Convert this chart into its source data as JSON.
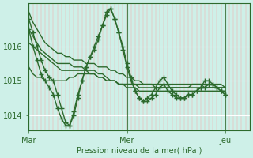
{
  "background_color": "#cef0e8",
  "plot_bg_color": "#cef0e8",
  "line_color": "#2d6a2d",
  "grid_color_major": "#ffffff",
  "grid_color_minor": "#f5aaaa",
  "xlabel": "Pression niveau de la mer( hPa )",
  "yticks": [
    1014,
    1015,
    1016
  ],
  "xtick_labels": [
    "Mar",
    "Mer",
    "Jeu"
  ],
  "xtick_positions": [
    0,
    24,
    48
  ],
  "xmin": 0,
  "xmax": 54,
  "ymin": 1013.55,
  "ymax": 1017.25,
  "vline_positions": [
    0,
    24,
    48
  ],
  "series": [
    {
      "y": [
        1017.0,
        1016.7,
        1016.5,
        1016.3,
        1016.1,
        1016.0,
        1015.9,
        1015.8,
        1015.8,
        1015.7,
        1015.7,
        1015.6,
        1015.6,
        1015.6,
        1015.5,
        1015.5,
        1015.5,
        1015.4,
        1015.4,
        1015.4,
        1015.3,
        1015.3,
        1015.2,
        1015.2,
        1015.1,
        1015.1,
        1015.0,
        1015.0,
        1014.9,
        1014.9,
        1014.9,
        1014.8,
        1014.8,
        1014.8,
        1014.8,
        1014.8,
        1014.8,
        1014.8,
        1014.8,
        1014.8,
        1014.9,
        1014.9,
        1014.9,
        1014.8,
        1014.8,
        1014.8,
        1014.8,
        1014.8,
        1014.8
      ],
      "marker": false
    },
    {
      "y": [
        1016.5,
        1016.3,
        1016.1,
        1015.9,
        1015.8,
        1015.7,
        1015.6,
        1015.5,
        1015.5,
        1015.5,
        1015.5,
        1015.4,
        1015.4,
        1015.4,
        1015.3,
        1015.3,
        1015.3,
        1015.2,
        1015.2,
        1015.1,
        1015.0,
        1015.0,
        1014.9,
        1014.9,
        1014.8,
        1014.8,
        1014.8,
        1014.7,
        1014.7,
        1014.7,
        1014.7,
        1014.7,
        1014.7,
        1014.7,
        1014.7,
        1014.7,
        1014.7,
        1014.7,
        1014.7,
        1014.7,
        1014.7,
        1014.7,
        1014.7,
        1014.7,
        1014.7,
        1014.7,
        1014.7,
        1014.7,
        1014.7
      ],
      "marker": false
    },
    {
      "y": [
        1016.1,
        1016.0,
        1015.9,
        1015.8,
        1015.7,
        1015.6,
        1015.5,
        1015.4,
        1015.3,
        1015.3,
        1015.3,
        1015.3,
        1015.3,
        1015.3,
        1015.3,
        1015.2,
        1015.2,
        1015.1,
        1015.1,
        1015.0,
        1015.0,
        1015.0,
        1014.9,
        1014.9,
        1014.9,
        1014.9,
        1014.9,
        1014.8,
        1014.8,
        1014.8,
        1014.8,
        1014.8,
        1014.8,
        1014.8,
        1014.8,
        1014.8,
        1014.8,
        1014.8,
        1014.8,
        1014.8,
        1014.8,
        1014.8,
        1014.8,
        1014.8,
        1014.8,
        1014.8,
        1014.8,
        1014.8,
        1014.8
      ],
      "marker": false
    },
    {
      "y": [
        1015.4,
        1015.2,
        1015.1,
        1015.1,
        1015.0,
        1015.0,
        1015.0,
        1015.0,
        1015.0,
        1015.0,
        1015.1,
        1015.1,
        1015.2,
        1015.2,
        1015.2,
        1015.2,
        1015.2,
        1015.1,
        1015.1,
        1015.0,
        1015.0,
        1015.0,
        1014.9,
        1014.9,
        1014.9,
        1014.9,
        1014.9,
        1014.9,
        1014.9,
        1014.9,
        1014.9,
        1014.9,
        1014.9,
        1014.9,
        1014.9,
        1014.9,
        1014.9,
        1014.9,
        1014.9,
        1014.9,
        1014.9,
        1014.9,
        1014.9,
        1014.9,
        1014.9,
        1014.9,
        1014.9,
        1014.9,
        1014.8
      ],
      "marker": false
    },
    {
      "y": [
        1016.8,
        1016.4,
        1016.0,
        1015.6,
        1015.3,
        1015.1,
        1015.0,
        1014.6,
        1014.2,
        1013.8,
        1013.7,
        1014.0,
        1014.5,
        1015.0,
        1015.4,
        1015.7,
        1015.9,
        1016.2,
        1016.6,
        1017.0,
        1017.1,
        1016.8,
        1016.4,
        1016.0,
        1015.5,
        1015.1,
        1014.7,
        1014.5,
        1014.4,
        1014.5,
        1014.6,
        1014.8,
        1015.0,
        1015.1,
        1014.9,
        1014.7,
        1014.6,
        1014.5,
        1014.5,
        1014.6,
        1014.6,
        1014.7,
        1014.8,
        1015.0,
        1015.0,
        1014.9,
        1014.8,
        1014.7,
        1014.6
      ],
      "marker": true
    },
    {
      "y": [
        1016.5,
        1016.0,
        1015.6,
        1015.2,
        1015.0,
        1014.8,
        1014.6,
        1014.2,
        1013.9,
        1013.7,
        1013.7,
        1014.1,
        1014.6,
        1015.0,
        1015.4,
        1015.7,
        1016.0,
        1016.3,
        1016.6,
        1016.9,
        1017.1,
        1016.8,
        1016.4,
        1015.9,
        1015.4,
        1015.0,
        1014.7,
        1014.5,
        1014.4,
        1014.4,
        1014.5,
        1014.6,
        1014.8,
        1014.9,
        1014.7,
        1014.6,
        1014.5,
        1014.5,
        1014.5,
        1014.6,
        1014.6,
        1014.7,
        1014.8,
        1014.8,
        1014.9,
        1014.9,
        1014.8,
        1014.7,
        1014.6
      ],
      "marker": true
    }
  ],
  "marker": "+",
  "marker_size": 4,
  "line_width": 1.0
}
